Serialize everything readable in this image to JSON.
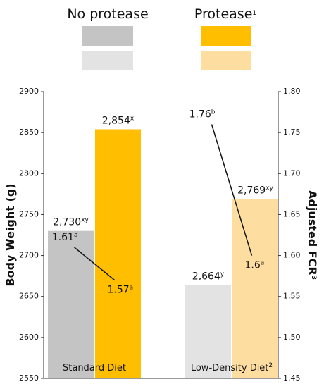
{
  "chart_data": {
    "type": "combo",
    "categories": [
      "Standard Diet",
      "Low-Density Diet"
    ],
    "category_superscripts": [
      null,
      "2"
    ],
    "series": [
      {
        "name": "No protease",
        "colors": [
          "#c4c4c4",
          "#e3e3e3"
        ],
        "values": [
          2730,
          2664
        ],
        "value_labels": [
          "2,730",
          "2,664"
        ],
        "letters": [
          "xy",
          "y"
        ]
      },
      {
        "name": "Protease",
        "name_superscript": "1",
        "colors": [
          "#ffbf00",
          "#fddea0"
        ],
        "values": [
          2854,
          2769
        ],
        "value_labels": [
          "2,854",
          "2,769"
        ],
        "letters": [
          "x",
          "xy"
        ]
      }
    ],
    "fcr": [
      {
        "values": [
          1.61,
          1.57
        ],
        "letters": [
          "a",
          "a"
        ]
      },
      {
        "values": [
          1.76,
          1.6
        ],
        "letters": [
          "b",
          "a"
        ]
      }
    ],
    "ylabel": "Body Weight (g)",
    "y2label": "Adjusted FCR",
    "y2label_superscript": "3",
    "ylim": [
      2550,
      2900
    ],
    "yticks": [
      2550,
      2600,
      2650,
      2700,
      2750,
      2800,
      2850,
      2900
    ],
    "y2lim": [
      1.45,
      1.8
    ],
    "y2ticks": [
      1.45,
      {
        "value": 1.5,
        "label": "1.50"
      },
      1.55,
      {
        "value": 1.6,
        "label": "1.60"
      },
      1.65,
      {
        "value": 1.7,
        "label": "1.70"
      },
      1.75,
      {
        "value": 1.8,
        "label": "1.80"
      }
    ]
  }
}
